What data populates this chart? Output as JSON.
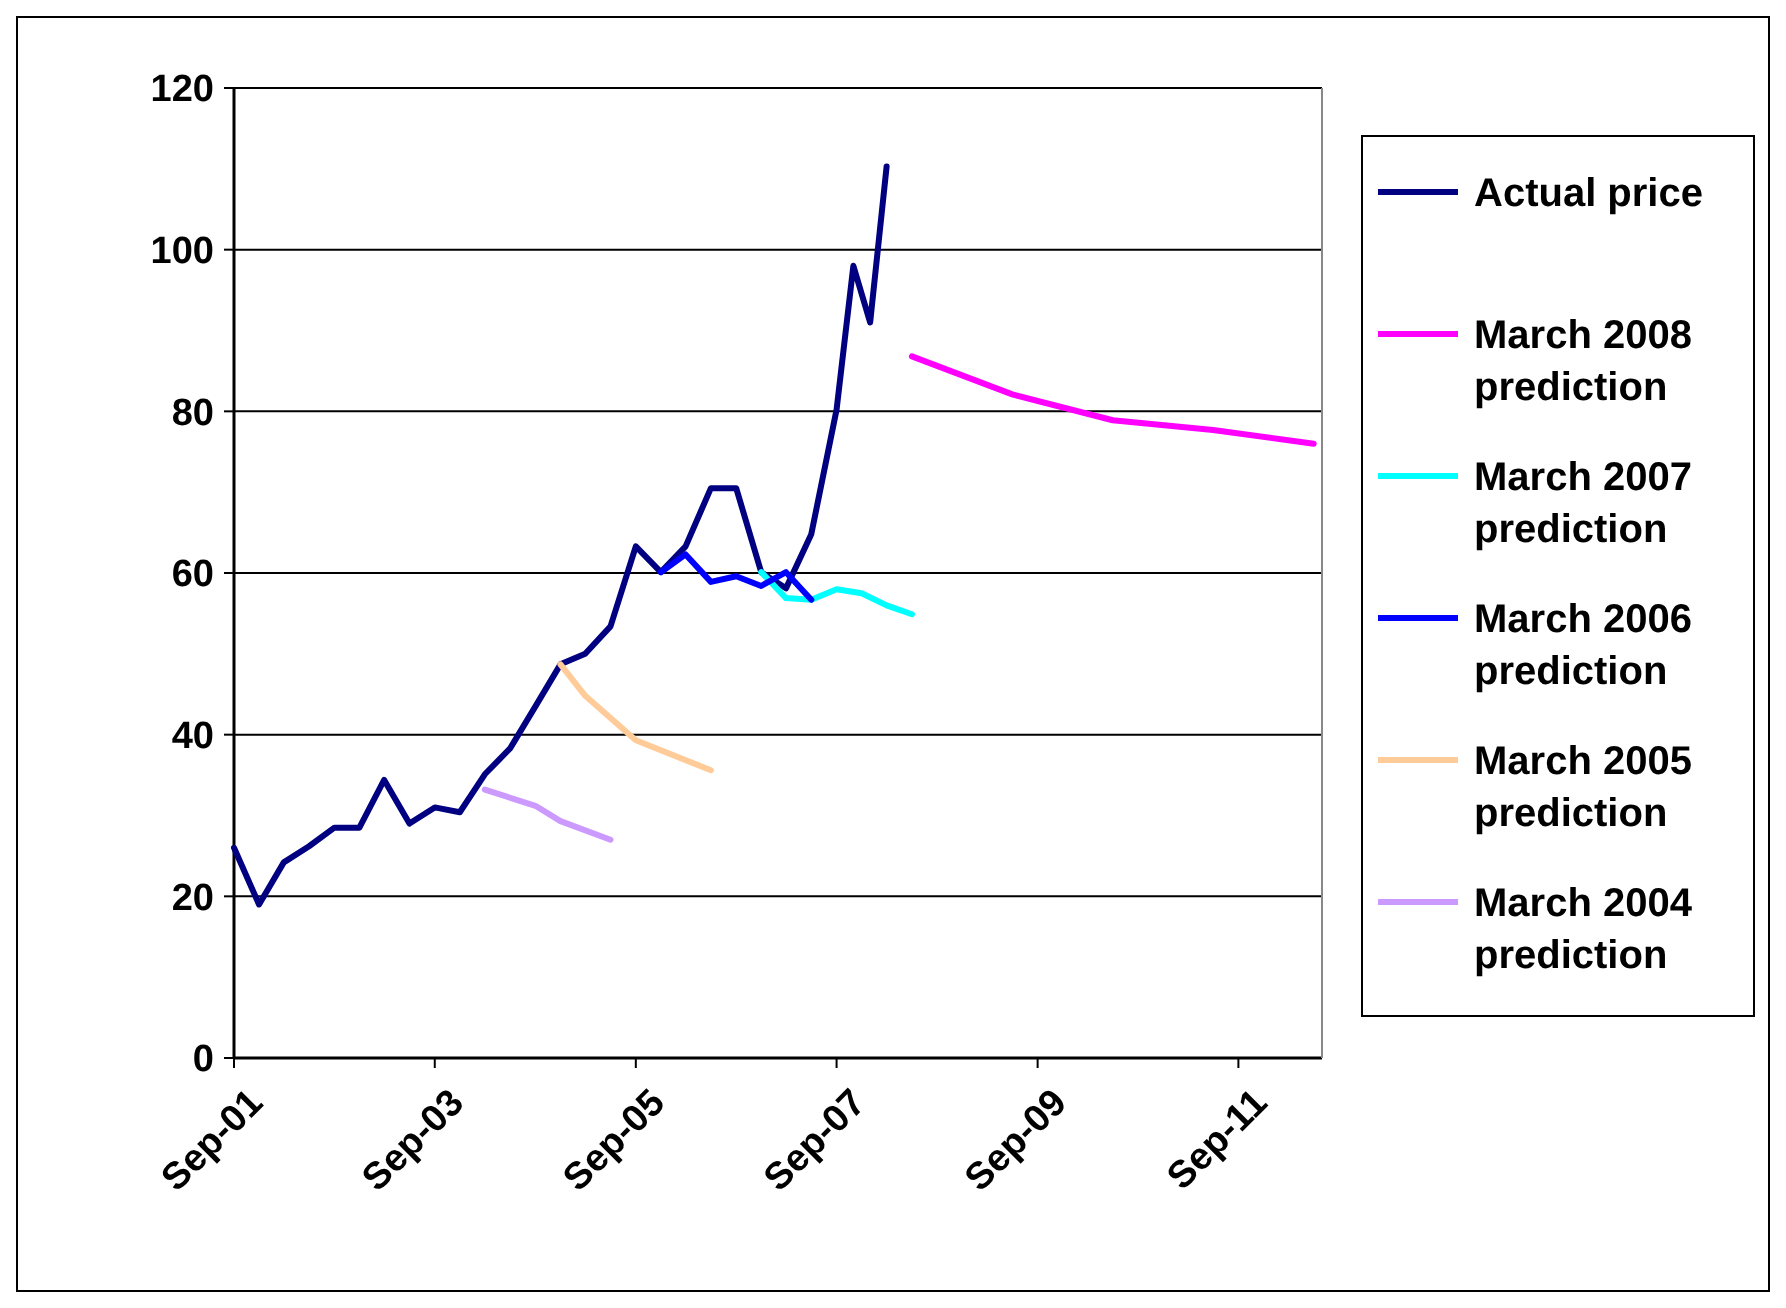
{
  "chart_data": {
    "type": "line",
    "xlim": [
      "2001-09",
      "2012-07"
    ],
    "xticks": [
      {
        "value": "2001-09",
        "label": "Sep-01"
      },
      {
        "value": "2003-09",
        "label": "Sep-03"
      },
      {
        "value": "2005-09",
        "label": "Sep-05"
      },
      {
        "value": "2007-09",
        "label": "Sep-07"
      },
      {
        "value": "2009-09",
        "label": "Sep-09"
      },
      {
        "value": "2011-09",
        "label": "Sep-11"
      }
    ],
    "ylim": [
      0,
      120
    ],
    "yticks": [
      0,
      20,
      40,
      60,
      80,
      100,
      120
    ],
    "grid": "y",
    "legend": "right",
    "line_style": "solid",
    "marker": "none",
    "series": [
      {
        "name": "Actual price",
        "color": "#000080",
        "x": [
          "2001-09",
          "2001-12",
          "2002-03",
          "2002-06",
          "2002-09",
          "2002-12",
          "2003-03",
          "2003-06",
          "2003-09",
          "2003-12",
          "2004-03",
          "2004-06",
          "2004-09",
          "2004-12",
          "2005-03",
          "2005-06",
          "2005-09",
          "2005-12",
          "2006-03",
          "2006-06",
          "2006-09",
          "2006-12",
          "2007-03",
          "2007-06",
          "2007-09",
          "2007-11",
          "2008-01",
          "2008-03"
        ],
        "values": [
          26,
          19,
          24.2,
          26.2,
          28.5,
          28.5,
          34.4,
          29,
          31,
          30.4,
          35.1,
          38.3,
          43.5,
          48.7,
          50,
          53.4,
          63.3,
          60.1,
          63.3,
          70.5,
          70.5,
          60.1,
          58.1,
          64.8,
          80.2,
          98,
          91,
          110.3
        ]
      },
      {
        "name": "March 2008 prediction",
        "color": "#ff00ff",
        "x": [
          "2008-06",
          "2009-06",
          "2010-06",
          "2011-06",
          "2012-06"
        ],
        "values": [
          86.8,
          82.1,
          78.9,
          77.7,
          76
        ]
      },
      {
        "name": "March 2007 prediction",
        "color": "#00ffff",
        "x": [
          "2006-12",
          "2007-03",
          "2007-06",
          "2007-09",
          "2007-12",
          "2008-03",
          "2008-06"
        ],
        "values": [
          60.1,
          56.9,
          56.7,
          58,
          57.5,
          56,
          54.9
        ]
      },
      {
        "name": "March 2006 prediction",
        "color": "#0000ff",
        "x": [
          "2005-12",
          "2006-03",
          "2006-06",
          "2006-09",
          "2006-12",
          "2007-03",
          "2007-06"
        ],
        "values": [
          60.1,
          62.3,
          58.9,
          59.6,
          58.4,
          60.1,
          56.7
        ]
      },
      {
        "name": "March 2005 prediction",
        "color": "#ffcc99",
        "x": [
          "2004-12",
          "2005-03",
          "2005-09",
          "2006-06"
        ],
        "values": [
          48.7,
          44.8,
          39.3,
          35.6
        ]
      },
      {
        "name": "March 2004 prediction",
        "color": "#cc99ff",
        "x": [
          "2004-03",
          "2004-09",
          "2004-12",
          "2005-06"
        ],
        "values": [
          33.2,
          31.2,
          29.3,
          27
        ]
      }
    ]
  }
}
